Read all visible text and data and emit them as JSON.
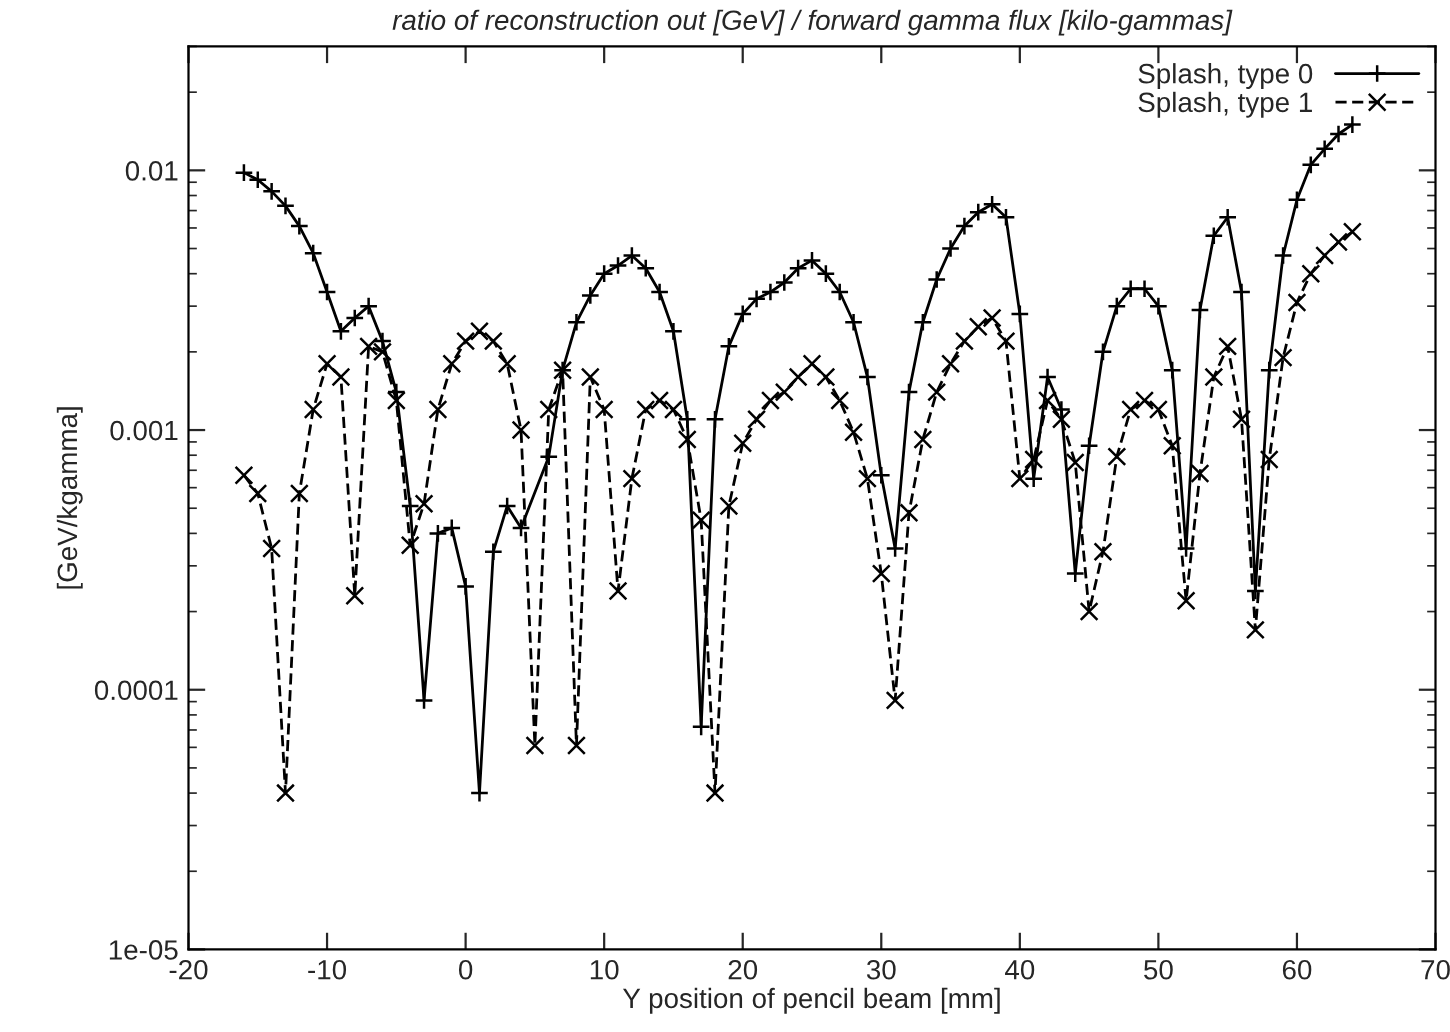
{
  "chart_data": {
    "type": "line",
    "title": "ratio of reconstruction out [GeV] / forward gamma flux [kilo-gammas]",
    "xlabel": "Y position of pencil beam [mm]",
    "ylabel": "[GeV/kgamma]",
    "x": [
      -16,
      -15,
      -14,
      -13,
      -12,
      -11,
      -10,
      -9,
      -8,
      -7,
      -6,
      -5,
      -4,
      -3,
      -2,
      -1,
      0,
      1,
      2,
      3,
      4,
      5,
      6,
      7,
      8,
      9,
      10,
      11,
      12,
      13,
      14,
      15,
      16,
      17,
      18,
      19,
      20,
      21,
      22,
      23,
      24,
      25,
      26,
      27,
      28,
      29,
      30,
      31,
      32,
      33,
      34,
      35,
      36,
      37,
      38,
      39,
      40,
      41,
      42,
      43,
      44,
      45,
      46,
      47,
      48,
      49,
      50,
      51,
      52,
      53,
      54,
      55,
      56,
      57,
      58,
      59,
      60,
      61,
      62,
      63,
      64
    ],
    "series": [
      {
        "name": "Splash, type 0",
        "color": "#000000",
        "marker": "plus",
        "line_style": "solid",
        "values": [
          0.0098,
          0.0092,
          0.0083,
          0.0073,
          0.0061,
          0.0048,
          0.0034,
          0.0024,
          0.0027,
          0.003,
          0.0022,
          0.0014,
          0.00051,
          9.1e-05,
          0.0004,
          0.00042,
          0.00025,
          4e-05,
          0.00034,
          0.00051,
          0.00042,
          null,
          0.00079,
          0.0017,
          0.0026,
          0.0033,
          0.004,
          0.0043,
          0.0047,
          0.0042,
          0.0034,
          0.0024,
          0.0011,
          7.2e-05,
          0.0011,
          0.0021,
          0.0028,
          0.0032,
          0.0034,
          0.0037,
          0.0042,
          0.0045,
          0.004,
          0.0034,
          0.0026,
          0.0016,
          0.00067,
          0.00035,
          0.0014,
          0.0026,
          0.0038,
          0.005,
          0.0061,
          0.0069,
          0.0074,
          0.0066,
          0.0028,
          0.00065,
          0.0016,
          0.0012,
          0.00028,
          0.00087,
          0.002,
          0.003,
          0.0035,
          0.0035,
          0.003,
          0.0017,
          0.00035,
          0.0029,
          0.0056,
          0.0066,
          0.0034,
          0.00024,
          0.0017,
          0.0047,
          0.0077,
          0.0105,
          0.0121,
          0.0138,
          0.015
        ]
      },
      {
        "name": "Splash, type 1",
        "color": "#000000",
        "marker": "cross",
        "line_style": "dashed",
        "values": [
          0.00067,
          0.00057,
          0.00035,
          4e-05,
          0.00057,
          0.0012,
          0.0018,
          0.0016,
          0.00023,
          0.0021,
          0.002,
          0.0013,
          0.00036,
          0.00052,
          0.0012,
          0.0018,
          0.0022,
          0.0024,
          0.0022,
          0.0018,
          0.001,
          6.1e-05,
          0.0012,
          0.0017,
          6.1e-05,
          0.0016,
          0.0012,
          0.00024,
          0.00065,
          0.0012,
          0.0013,
          0.0012,
          0.00092,
          0.00045,
          4e-05,
          0.00051,
          0.00089,
          0.0011,
          0.0013,
          0.0014,
          0.0016,
          0.0018,
          0.0016,
          0.0013,
          0.00098,
          0.00065,
          0.00028,
          9.1e-05,
          0.00048,
          0.00092,
          0.0014,
          0.0018,
          0.0022,
          0.0025,
          0.0027,
          0.0022,
          0.00065,
          0.00077,
          0.0013,
          0.0011,
          0.00075,
          0.0002,
          0.00034,
          0.00079,
          0.0012,
          0.0013,
          0.0012,
          0.00087,
          0.00022,
          0.00068,
          0.0016,
          0.0021,
          0.0011,
          0.00017,
          0.00077,
          0.0019,
          0.0031,
          0.004,
          0.0047,
          0.0053,
          0.0058
        ]
      }
    ],
    "log": "y",
    "xlim": [
      -20,
      70
    ],
    "xticks": [
      -20,
      -10,
      0,
      10,
      20,
      30,
      40,
      50,
      60,
      70
    ],
    "ylim": [
      1e-05,
      0.03
    ],
    "yticks": [
      {
        "value": 1e-05,
        "label": "1e-05"
      },
      {
        "value": 0.0001,
        "label": "0.0001"
      },
      {
        "value": 0.001,
        "label": "0.001"
      },
      {
        "value": 0.01,
        "label": "0.01"
      }
    ],
    "legend": "top right",
    "grid": false
  }
}
